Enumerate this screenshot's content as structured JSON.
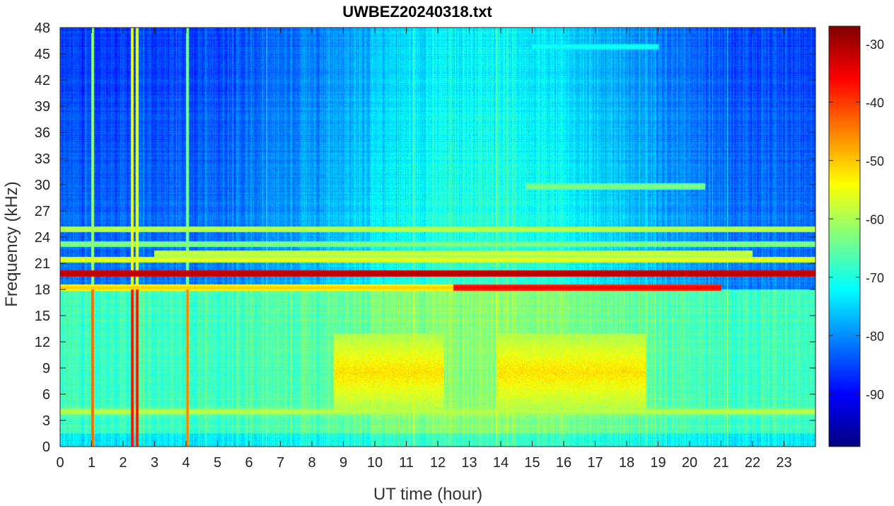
{
  "chart_data": {
    "type": "heatmap",
    "title": "UWBEZ20240318.txt",
    "xlabel": "UT time (hour)",
    "ylabel": "Frequency (kHz)",
    "xlim": [
      0,
      24
    ],
    "ylim": [
      0,
      48
    ],
    "x_ticks": [
      0,
      1,
      2,
      3,
      4,
      5,
      6,
      7,
      8,
      9,
      10,
      11,
      12,
      13,
      14,
      15,
      16,
      17,
      18,
      19,
      20,
      21,
      22,
      23
    ],
    "y_ticks": [
      0,
      3,
      6,
      9,
      12,
      15,
      18,
      21,
      24,
      27,
      30,
      33,
      36,
      39,
      42,
      45,
      48
    ],
    "colorbar": {
      "colormap": "jet",
      "range": [
        -99,
        -27
      ],
      "ticks": [
        -90,
        -80,
        -70,
        -60,
        -50,
        -40,
        -30
      ]
    },
    "background_level_low_freq": -60,
    "background_level_high_freq": -82,
    "features": {
      "horizontal_lines": [
        {
          "freq_khz": 19.8,
          "level": -30,
          "from_hour": 0,
          "to_hour": 24
        },
        {
          "freq_khz": 18.2,
          "level": -50,
          "from_hour": 0,
          "to_hour": 12.5
        },
        {
          "freq_khz": 18.2,
          "level": -35,
          "from_hour": 12.5,
          "to_hour": 21
        },
        {
          "freq_khz": 21.4,
          "level": -55,
          "from_hour": 0,
          "to_hour": 24
        },
        {
          "freq_khz": 22.1,
          "level": -57,
          "from_hour": 3,
          "to_hour": 22
        },
        {
          "freq_khz": 24.9,
          "level": -58,
          "from_hour": 0,
          "to_hour": 24
        },
        {
          "freq_khz": 23.2,
          "level": -62,
          "from_hour": 0,
          "to_hour": 24
        },
        {
          "freq_khz": 29.8,
          "level": -62,
          "from_hour": 14.8,
          "to_hour": 20.5
        },
        {
          "freq_khz": 4.0,
          "level": -58,
          "from_hour": 0,
          "to_hour": 24
        },
        {
          "freq_khz": 45.8,
          "level": -70,
          "from_hour": 15,
          "to_hour": 19
        }
      ],
      "vertical_lines": [
        {
          "hour": 1.03,
          "level": -42
        },
        {
          "hour": 2.3,
          "level": -36
        },
        {
          "hour": 2.45,
          "level": -36
        },
        {
          "hour": 4.05,
          "level": -44
        }
      ],
      "broadband_enhancement": [
        {
          "from_hour": 8.7,
          "to_hour": 12.2,
          "freq_low_khz": 4,
          "freq_high_khz": 13,
          "level": -52
        },
        {
          "from_hour": 13.9,
          "to_hour": 18.6,
          "freq_low_khz": 4,
          "freq_high_khz": 13,
          "level": -52
        }
      ]
    }
  }
}
